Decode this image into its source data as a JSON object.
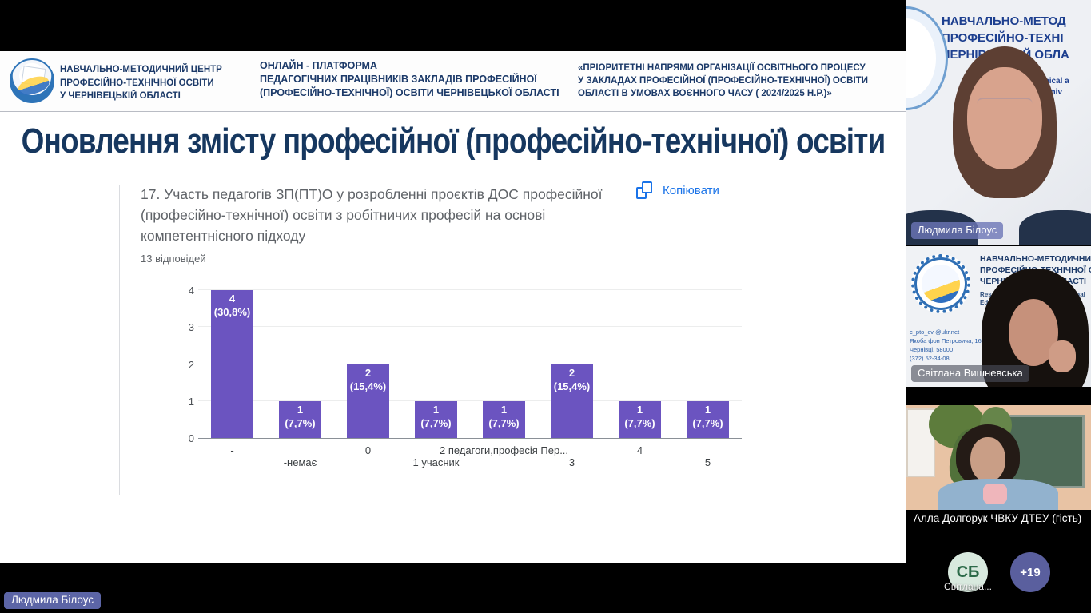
{
  "slide": {
    "header": {
      "left_lines": [
        "НАВЧАЛЬНО-МЕТОДИЧНИЙ ЦЕНТР",
        "ПРОФЕСІЙНО-ТЕХНІЧНОЇ ОСВІТИ",
        "У ЧЕРНІВЕЦЬКІЙ ОБЛАСТІ"
      ],
      "center_lines": [
        "ОНЛАЙН - ПЛАТФОРМА",
        "ПЕДАГОГІЧНИХ ПРАЦІВНИКІВ ЗАКЛАДІВ ПРОФЕСІЙНОЇ",
        "(ПРОФЕСІЙНО-ТЕХНІЧНОЇ) ОСВІТИ ЧЕРНІВЕЦЬКОЇ ОБЛАСТІ"
      ],
      "right_lines": [
        "«ПРІОРИТЕТНІ НАПРЯМИ ОРГАНІЗАЦІЇ ОСВІТНЬОГО ПРОЦЕСУ",
        "У ЗАКЛАДАХ ПРОФЕСІЙНОЇ  (ПРОФЕСІЙНО-ТЕХНІЧНОЇ) ОСВІТИ",
        "ОБЛАСТІ В УМОВАХ ВОЄННОГО ЧАСУ ( 2024/2025 Н.Р.)»"
      ]
    },
    "title": "Оновлення змісту професійної (професійно-технічної) освіти",
    "question_lines": [
      "17. Участь педагогів ЗП(ПТ)О у розробленні проєктів ДОС професійної",
      "(професійно-технічної) освіти з робітничих професій на основі",
      "компетентнісного підходу"
    ],
    "responses": "13 відповідей",
    "copy_label": "Копіювати"
  },
  "chart_data": {
    "type": "bar",
    "title": "17. Участь педагогів ЗП(ПТ)О у розробленні проєктів ДОС професійної (професійно-технічної) освіти з робітничих професій на основі компетентнісного підходу",
    "subtitle": "13 відповідей",
    "categories": [
      "-",
      "-немає",
      "0",
      "1 учасник",
      "2 педагоги,професія Пер...",
      "3",
      "4",
      "5"
    ],
    "values": [
      4,
      1,
      2,
      1,
      1,
      2,
      1,
      1
    ],
    "bar_labels": [
      "4\n(30,8%)",
      "1 (7,7%)",
      "2\n(15,4%)",
      "1 (7,7%)",
      "1 (7,7%)",
      "2\n(15,4%)",
      "1 (7,7%)",
      "1 (7,7%)"
    ],
    "xlabel": "",
    "ylabel": "",
    "ylim": [
      0,
      4
    ],
    "yticks": [
      0,
      1,
      2,
      3,
      4
    ],
    "bar_color": "#6b54c0",
    "grid": true,
    "legend": false
  },
  "participants": [
    {
      "name": "Людмила Білоус",
      "banner_lines": [
        "НАВЧАЛЬНО-МЕТОД",
        "ПРОФЕСІЙНО-ТЕХНІ",
        "ЧЕРНІВЕЦЬКІЙ ОБЛА"
      ],
      "banner_eng_1": "Technical a",
      "banner_eng_2": "ng, Cherniv"
    },
    {
      "name": "Світлана Вишневська",
      "banner_lines": [
        "НАВЧАЛЬНО-МЕТОДИЧНИЙ Ц",
        "ПРОФЕСІЙНО-ТЕХНІЧНОЇ ОСВ",
        "ЧЕРНІВЕЦЬКИЙ ОБЛАСТІ"
      ],
      "small_1": "Resource C",
      "small_2": "Vocational",
      "small_3": "Education",
      "small_4": "blast",
      "contact_lines": [
        "c_pto_cv @ukr.net",
        "Якоба фон Петровича, 16",
        "Чернівці, 58000",
        "(372) 52-34-08"
      ]
    },
    {
      "name": "Алла Долгорук ЧВКУ ДТЕУ (гість)"
    }
  ],
  "overflow": {
    "avatar_initials": "СБ",
    "avatar_label": "Світлана...",
    "more_count": "+19"
  },
  "self_label": "Людмила Білоус",
  "colors": {
    "bar": "#6b54c0",
    "title_navy": "#16375f",
    "copy_blue": "#1a73e8",
    "tag_slate": "#646eb4",
    "avatar_mint": "#d8e9de",
    "avatar_more": "#5a5f9e"
  }
}
